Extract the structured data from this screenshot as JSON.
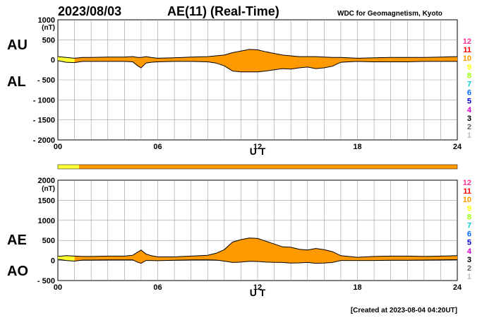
{
  "date": "2023/08/03",
  "title": "AE(11) (Real-Time)",
  "source": "WDC for Geomagnetism, Kyoto",
  "footer": "[Created at 2023-08-04 04:20UT]",
  "colors": {
    "fill_main": "#ff9900",
    "fill_early": "#ffff33",
    "outline": "#000000",
    "grid": "#999999"
  },
  "level_scale": [
    {
      "label": "12",
      "color": "#ff3399"
    },
    {
      "label": "11",
      "color": "#ff0000"
    },
    {
      "label": "10",
      "color": "#ff9900"
    },
    {
      "label": "9",
      "color": "#ffff00"
    },
    {
      "label": "8",
      "color": "#99ff00"
    },
    {
      "label": "7",
      "color": "#00cccc"
    },
    {
      "label": "6",
      "color": "#0066ff"
    },
    {
      "label": "5",
      "color": "#0000cc"
    },
    {
      "label": "4",
      "color": "#cc00cc"
    },
    {
      "label": "3",
      "color": "#000000"
    },
    {
      "label": "2",
      "color": "#666666"
    },
    {
      "label": "1",
      "color": "#bbbbbb"
    }
  ],
  "chart_data": [
    {
      "type": "area",
      "title": "AU / AL",
      "label_upper": "AU",
      "label_lower": "AL",
      "xlabel": "U T",
      "ylabel": "(nT)",
      "ylim": [
        -2000,
        1000
      ],
      "yticks": [
        1000,
        500,
        0,
        -500,
        -1000,
        -1500,
        -2000
      ],
      "ytick_labels": [
        "1000",
        "500",
        "0",
        "- 500",
        "- 1000",
        "- 1500",
        "- 2000"
      ],
      "xlim": [
        0,
        24
      ],
      "xticks": [
        0,
        6,
        12,
        18,
        24
      ],
      "xtick_labels": [
        "00",
        "06",
        "12",
        "18",
        "24"
      ],
      "x": [
        0,
        0.5,
        1,
        1.5,
        2,
        3,
        4,
        4.5,
        4.8,
        5.0,
        5.3,
        5.6,
        6,
        7,
        8,
        9,
        9.5,
        10,
        10.5,
        11,
        11.5,
        12,
        12.5,
        13,
        13.5,
        14,
        14.5,
        15,
        15.5,
        16,
        16.5,
        17,
        18,
        19,
        20,
        21,
        22,
        23,
        24
      ],
      "series": [
        {
          "name": "AU",
          "values": [
            80,
            60,
            40,
            60,
            60,
            70,
            70,
            80,
            60,
            60,
            80,
            60,
            40,
            50,
            70,
            80,
            100,
            120,
            180,
            220,
            260,
            250,
            200,
            160,
            120,
            100,
            80,
            80,
            80,
            70,
            60,
            60,
            40,
            50,
            60,
            60,
            60,
            70,
            80
          ]
        },
        {
          "name": "AL",
          "values": [
            -20,
            -60,
            -70,
            -40,
            -40,
            -40,
            -40,
            -50,
            -150,
            -200,
            -80,
            -60,
            -50,
            -40,
            -40,
            -50,
            -80,
            -150,
            -280,
            -300,
            -300,
            -300,
            -280,
            -250,
            -220,
            -230,
            -200,
            -180,
            -220,
            -200,
            -160,
            -60,
            -40,
            -50,
            -50,
            -50,
            -40,
            -40,
            -40
          ]
        }
      ]
    },
    {
      "type": "area",
      "title": "AE / AO",
      "label_upper": "AE",
      "label_lower": "AO",
      "xlabel": "U T",
      "ylabel": "(nT)",
      "ylim": [
        -500,
        2000
      ],
      "yticks": [
        2000,
        1500,
        1000,
        500,
        0,
        -500
      ],
      "ytick_labels": [
        "2000",
        "1500",
        "1000",
        "500",
        "0",
        "- 500"
      ],
      "xlim": [
        0,
        24
      ],
      "xticks": [
        0,
        6,
        12,
        18,
        24
      ],
      "xtick_labels": [
        "00",
        "06",
        "12",
        "18",
        "24"
      ],
      "x": [
        0,
        0.5,
        1,
        1.5,
        2,
        3,
        4,
        4.5,
        4.8,
        5.0,
        5.3,
        5.6,
        6,
        7,
        8,
        9,
        9.5,
        10,
        10.5,
        11,
        11.5,
        12,
        12.5,
        13,
        13.5,
        14,
        14.5,
        15,
        15.5,
        16,
        16.5,
        17,
        18,
        19,
        20,
        21,
        22,
        23,
        24
      ],
      "series": [
        {
          "name": "AE",
          "values": [
            100,
            120,
            110,
            100,
            100,
            110,
            110,
            130,
            210,
            260,
            160,
            120,
            90,
            90,
            110,
            130,
            180,
            270,
            460,
            520,
            560,
            550,
            480,
            410,
            340,
            330,
            280,
            260,
            300,
            270,
            220,
            120,
            80,
            100,
            110,
            110,
            100,
            110,
            120
          ]
        },
        {
          "name": "AO",
          "values": [
            30,
            0,
            -15,
            10,
            10,
            15,
            15,
            15,
            -45,
            -70,
            0,
            0,
            -5,
            5,
            15,
            15,
            10,
            -15,
            -50,
            -40,
            -20,
            -25,
            -40,
            -45,
            -50,
            -65,
            -60,
            -50,
            -70,
            -65,
            -50,
            0,
            0,
            0,
            5,
            5,
            10,
            15,
            20
          ]
        }
      ]
    }
  ]
}
